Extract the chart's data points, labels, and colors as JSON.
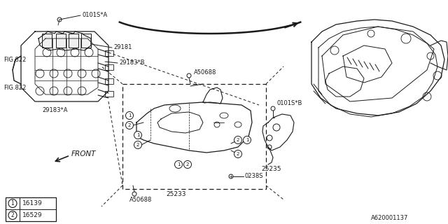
{
  "bg_color": "#ffffff",
  "line_color": "#1a1a1a",
  "text_color": "#1a1a1a",
  "diagram_number": "A620001137",
  "labels": {
    "0101SA": "0101S*A",
    "29181": "29181",
    "29183B": "29183*B",
    "29183A": "29183*A",
    "FIG822_top": "FIG.822",
    "FIG822_bot": "FIG.822",
    "A50688_top": "A50688",
    "A50688_bot": "A50688",
    "0238S": "0238S",
    "25233": "25233",
    "0101SB": "0101S*B",
    "25235": "25235",
    "FRONT": "FRONT",
    "legend1": "16139",
    "legend2": "16529"
  }
}
